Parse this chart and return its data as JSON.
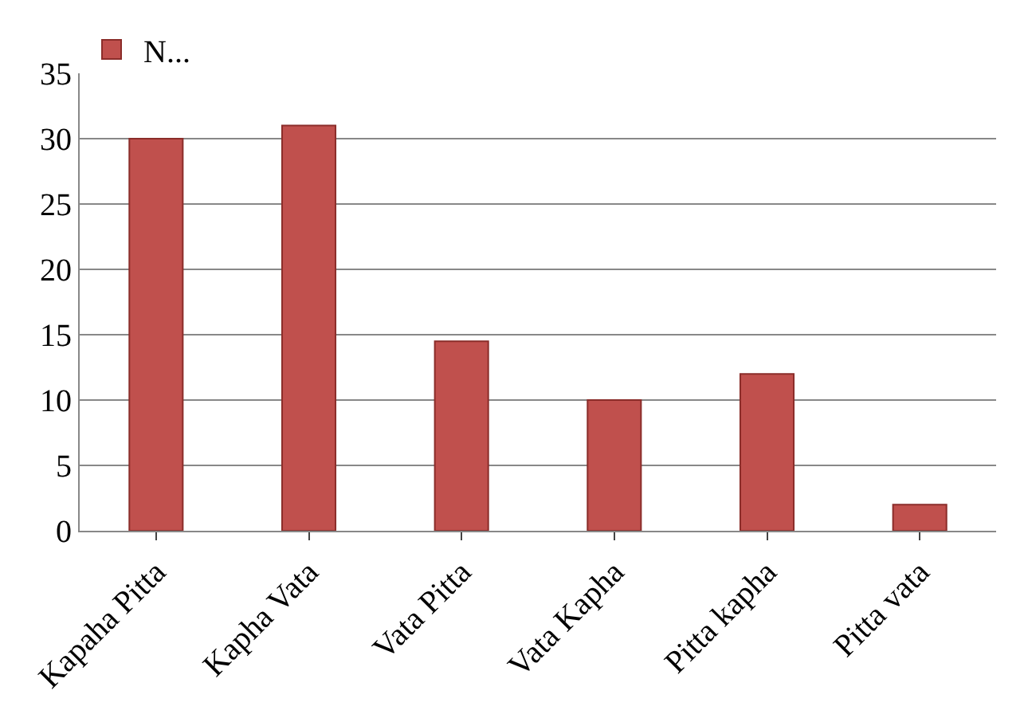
{
  "chart_data": {
    "type": "bar",
    "categories": [
      "Kapaha Pitta",
      "Kapha Vata",
      "Vata Pitta",
      "Vata Kapha",
      "Pitta kapha",
      "Pitta vata"
    ],
    "series": [
      {
        "name": "N...",
        "color": "#c0504d",
        "values": [
          30,
          31,
          14.5,
          10,
          12,
          2
        ]
      }
    ],
    "ylim": [
      0,
      35
    ],
    "yticks": [
      0,
      5,
      10,
      15,
      20,
      25,
      30,
      35
    ],
    "grid": "y",
    "legend": "top left"
  }
}
